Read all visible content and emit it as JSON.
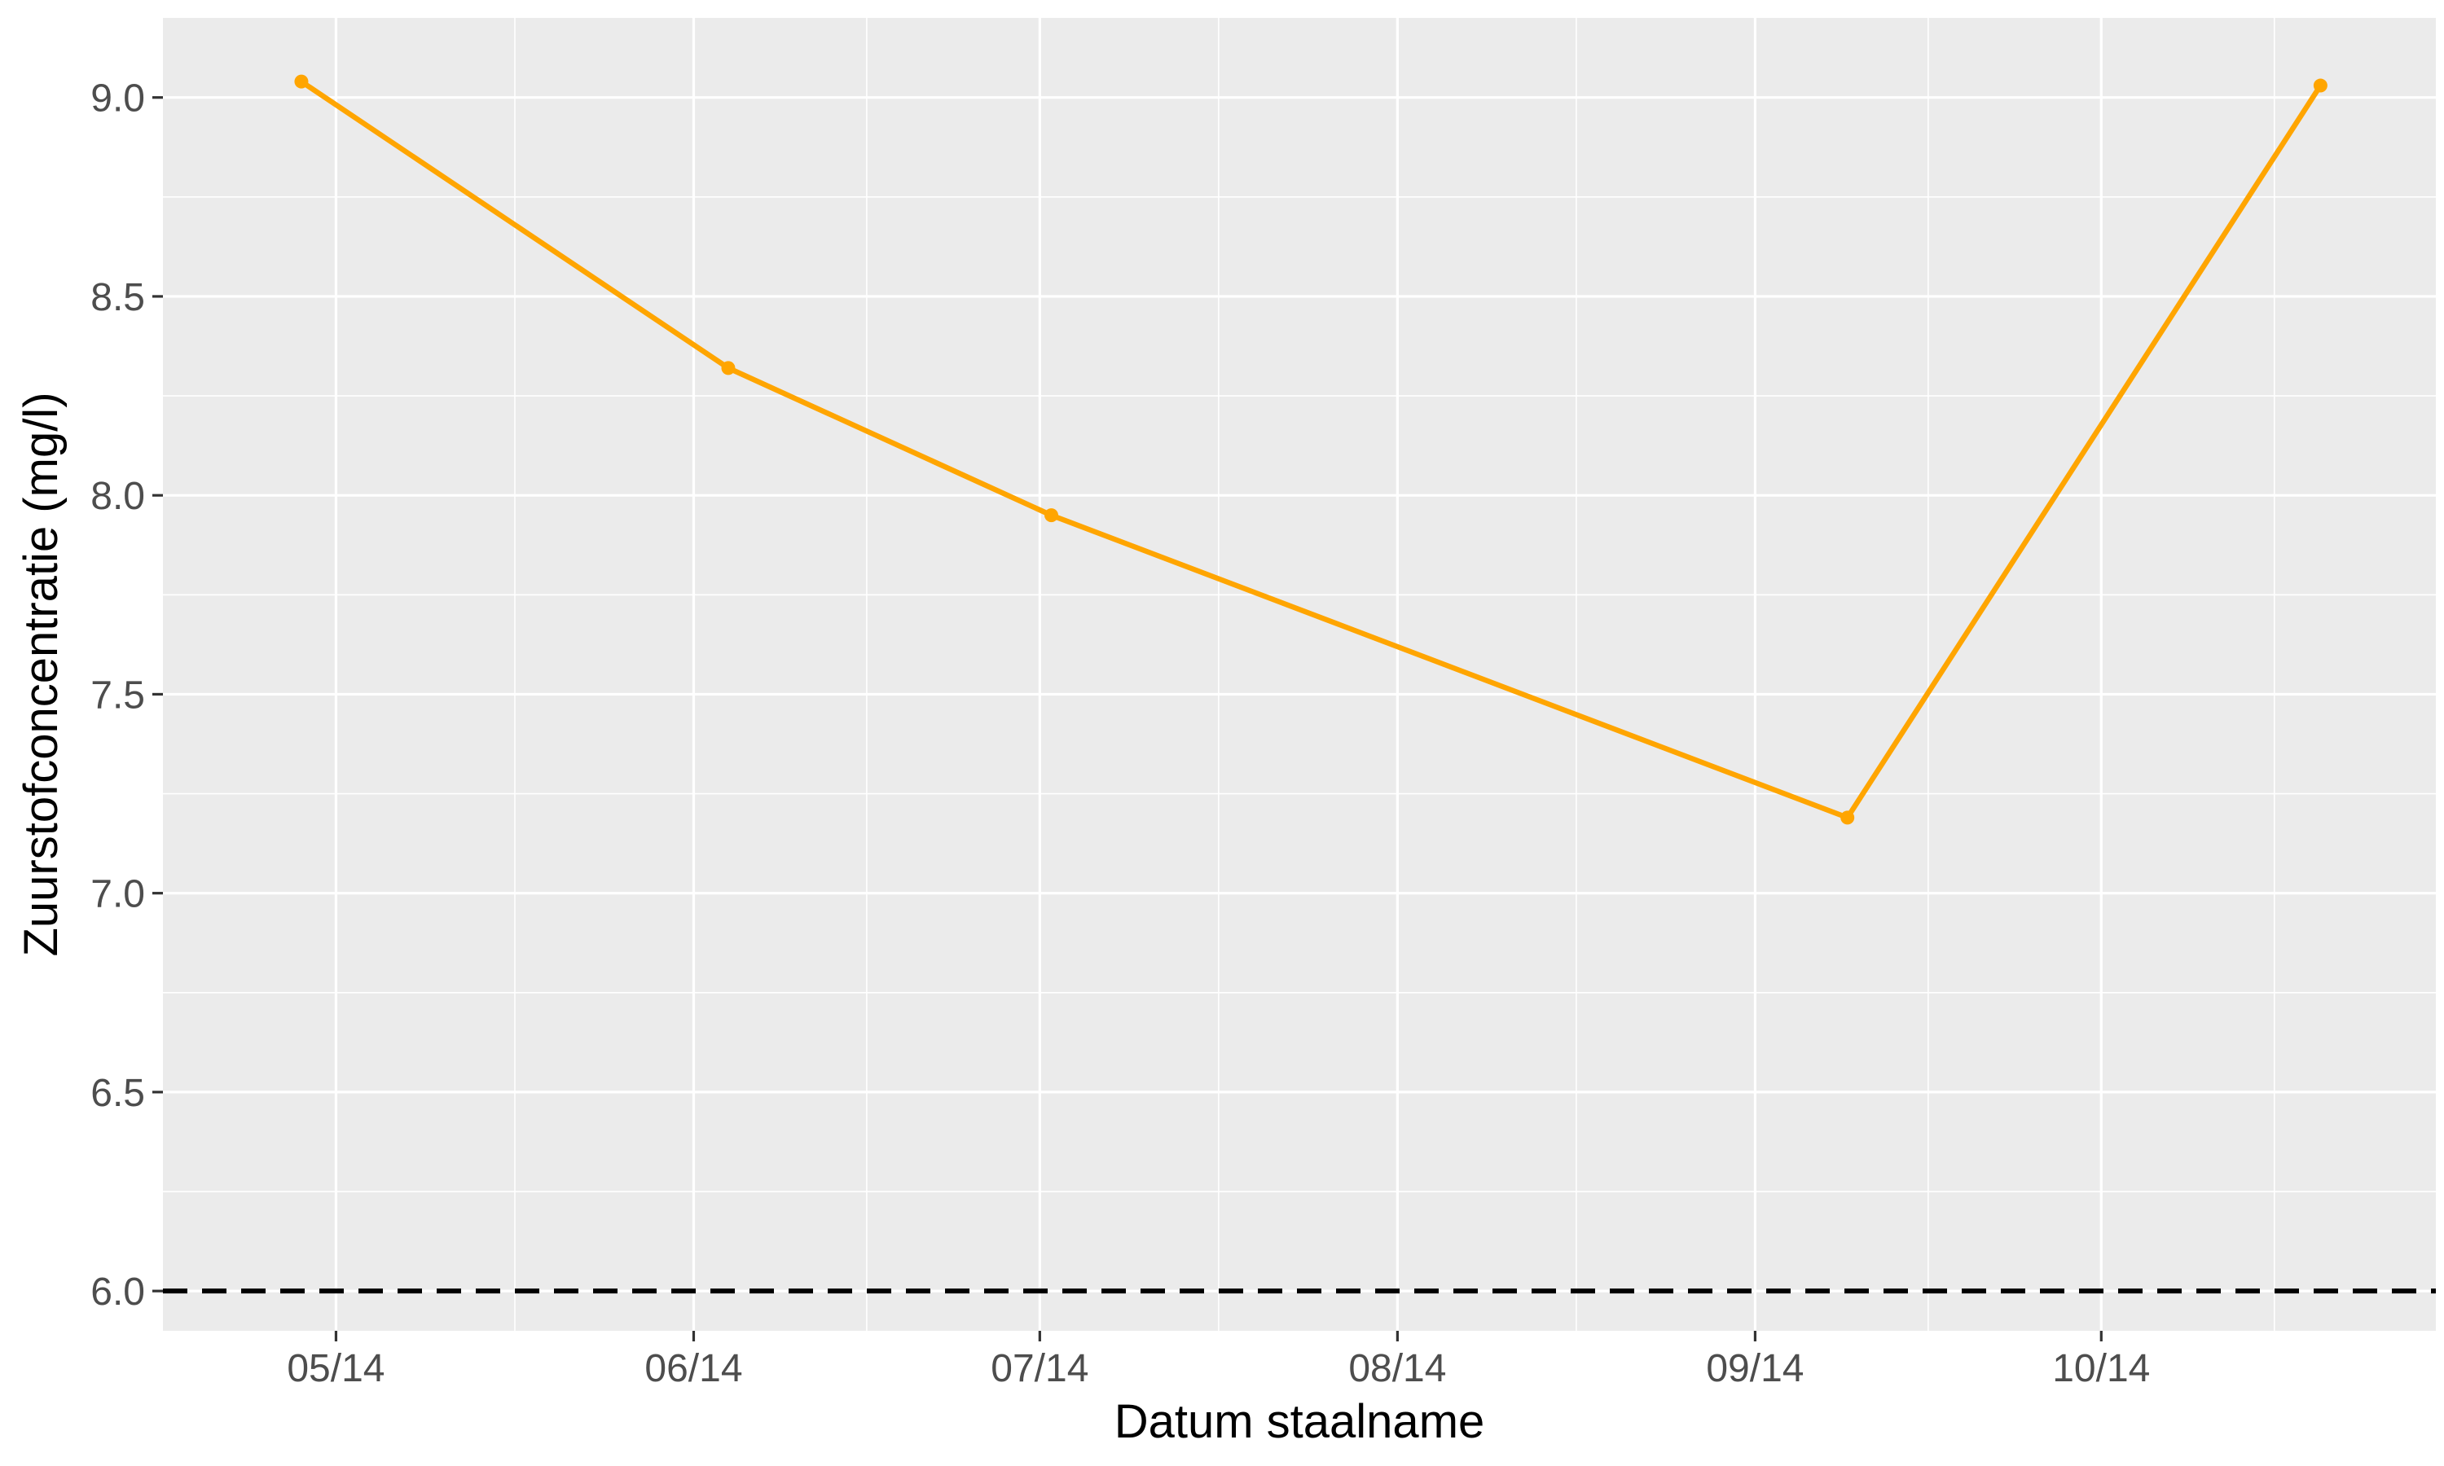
{
  "chart_data": {
    "type": "line",
    "title": "",
    "xlabel": "Datum staalname",
    "ylabel": "Zuurstofconcentratie (mg/l)",
    "x_type": "date",
    "x_ticks": [
      "2024-05-14",
      "2024-06-14",
      "2024-07-14",
      "2024-08-14",
      "2024-09-14",
      "2024-10-14"
    ],
    "x_tick_labels": [
      "05/14",
      "06/14",
      "07/14",
      "08/14",
      "09/14",
      "10/14"
    ],
    "xlim": [
      "2024-04-29",
      "2024-11-12"
    ],
    "ylim": [
      5.9,
      9.2
    ],
    "y_ticks": [
      6.0,
      6.5,
      7.0,
      7.5,
      8.0,
      8.5,
      9.0
    ],
    "y_tick_labels": [
      "6.0",
      "6.5",
      "7.0",
      "7.5",
      "8.0",
      "8.5",
      "9.0"
    ],
    "grid": true,
    "panel_background": "#ebebeb",
    "grid_color": "#ffffff",
    "series": [
      {
        "color": "#ffa500",
        "x": [
          "2024-05-11",
          "2024-06-17",
          "2024-07-15",
          "2024-09-22",
          "2024-11-02"
        ],
        "y": [
          9.04,
          8.32,
          7.95,
          7.19,
          9.03
        ]
      }
    ],
    "reference_lines": [
      {
        "axis": "y",
        "value": 6.0,
        "style": "dashed",
        "color": "#000000"
      }
    ]
  }
}
